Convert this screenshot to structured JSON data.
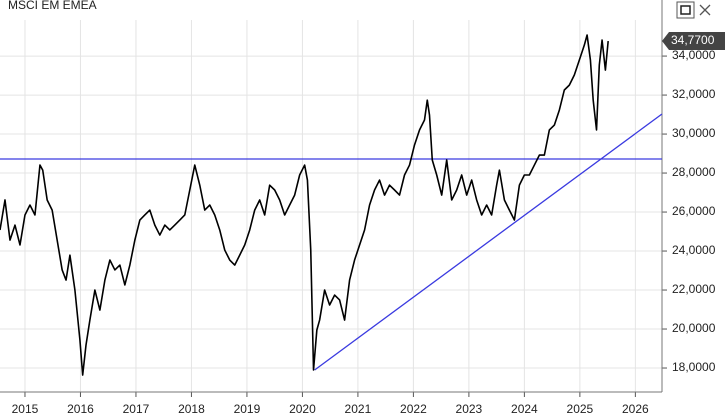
{
  "chart_data": {
    "type": "line",
    "title": "MSCI EM EMEA",
    "xlim": [
      2014.55,
      2026.48
    ],
    "ylim": [
      16.77,
      35.85
    ],
    "xticks": [
      2015,
      2016,
      2017,
      2018,
      2019,
      2020,
      2021,
      2022,
      2023,
      2024,
      2025,
      2026
    ],
    "yticks": [
      {
        "value": 18,
        "label": "18,0000"
      },
      {
        "value": 20,
        "label": "20,0000"
      },
      {
        "value": 22,
        "label": "22,0000"
      },
      {
        "value": 24,
        "label": "24,0000"
      },
      {
        "value": 26,
        "label": "26,0000"
      },
      {
        "value": 28,
        "label": "28,0000"
      },
      {
        "value": 30,
        "label": "30,0000"
      },
      {
        "value": 32,
        "label": "32,0000"
      },
      {
        "value": 34,
        "label": "34,0000"
      }
    ],
    "grid": true,
    "last_value": {
      "value": 34.77,
      "label": "34,7700"
    },
    "hline": {
      "value": 28.72,
      "color": "#3a3ae0"
    },
    "trendline": {
      "x": [
        2020.22,
        2026.48
      ],
      "y": [
        17.9,
        31.03
      ],
      "color": "#3a3ae0"
    },
    "series": [
      {
        "color": "#000000",
        "x": [
          2014.55,
          2014.64,
          2014.73,
          2014.82,
          2014.91,
          2015.0,
          2015.09,
          2015.18,
          2015.27,
          2015.32,
          2015.4,
          2015.49,
          2015.58,
          2015.67,
          2015.74,
          2015.81,
          2015.9,
          2015.99,
          2016.04,
          2016.1,
          2016.17,
          2016.26,
          2016.35,
          2016.44,
          2016.53,
          2016.62,
          2016.71,
          2016.8,
          2016.89,
          2016.98,
          2017.07,
          2017.16,
          2017.25,
          2017.34,
          2017.43,
          2017.52,
          2017.61,
          2017.7,
          2017.79,
          2017.88,
          2017.97,
          2018.06,
          2018.15,
          2018.24,
          2018.33,
          2018.42,
          2018.51,
          2018.6,
          2018.69,
          2018.78,
          2018.87,
          2018.96,
          2019.05,
          2019.14,
          2019.23,
          2019.32,
          2019.41,
          2019.5,
          2019.59,
          2019.68,
          2019.77,
          2019.86,
          2019.95,
          2020.04,
          2020.09,
          2020.15,
          2020.2,
          2020.26,
          2020.31,
          2020.4,
          2020.49,
          2020.58,
          2020.67,
          2020.76,
          2020.85,
          2020.94,
          2021.03,
          2021.12,
          2021.21,
          2021.3,
          2021.39,
          2021.48,
          2021.57,
          2021.66,
          2021.75,
          2021.84,
          2021.93,
          2022.02,
          2022.11,
          2022.2,
          2022.25,
          2022.29,
          2022.34,
          2022.42,
          2022.51,
          2022.6,
          2022.69,
          2022.78,
          2022.87,
          2022.96,
          2023.05,
          2023.14,
          2023.23,
          2023.32,
          2023.41,
          2023.5,
          2023.55,
          2023.64,
          2023.73,
          2023.82,
          2023.91,
          2024.0,
          2024.09,
          2024.18,
          2024.27,
          2024.36,
          2024.45,
          2024.54,
          2024.63,
          2024.72,
          2024.81,
          2024.9,
          2024.99,
          2025.08,
          2025.13,
          2025.19,
          2025.24,
          2025.3,
          2025.35,
          2025.4,
          2025.46,
          2025.51
        ],
        "values": [
          25.08,
          26.62,
          24.56,
          25.33,
          24.31,
          25.85,
          26.36,
          25.85,
          28.41,
          28.15,
          26.62,
          26.1,
          24.56,
          23.03,
          22.51,
          23.79,
          22.0,
          19.44,
          17.64,
          19.18,
          20.46,
          22.0,
          20.97,
          22.51,
          23.54,
          23.03,
          23.28,
          22.26,
          23.28,
          24.56,
          25.59,
          25.85,
          26.1,
          25.33,
          24.82,
          25.33,
          25.08,
          25.33,
          25.59,
          25.85,
          27.13,
          28.41,
          27.38,
          26.1,
          26.36,
          25.85,
          25.08,
          24.05,
          23.54,
          23.28,
          23.79,
          24.31,
          25.08,
          26.1,
          26.62,
          25.85,
          27.38,
          27.13,
          26.62,
          25.85,
          26.36,
          26.87,
          27.9,
          28.41,
          27.64,
          24.05,
          17.9,
          19.95,
          20.46,
          22.0,
          21.23,
          21.74,
          21.49,
          20.46,
          22.51,
          23.54,
          24.31,
          25.08,
          26.36,
          27.13,
          27.64,
          26.87,
          27.38,
          27.13,
          26.87,
          27.9,
          28.41,
          29.44,
          30.21,
          30.72,
          31.74,
          30.97,
          28.67,
          27.9,
          26.87,
          28.67,
          26.62,
          27.13,
          27.9,
          26.87,
          27.64,
          26.62,
          25.85,
          26.36,
          25.85,
          27.38,
          28.15,
          26.62,
          26.1,
          25.59,
          27.38,
          27.9,
          27.9,
          28.41,
          28.92,
          28.92,
          30.21,
          30.46,
          31.23,
          32.26,
          32.51,
          33.03,
          33.79,
          34.56,
          35.08,
          33.79,
          31.74,
          30.21,
          33.54,
          34.82,
          33.28,
          34.77
        ]
      }
    ]
  }
}
